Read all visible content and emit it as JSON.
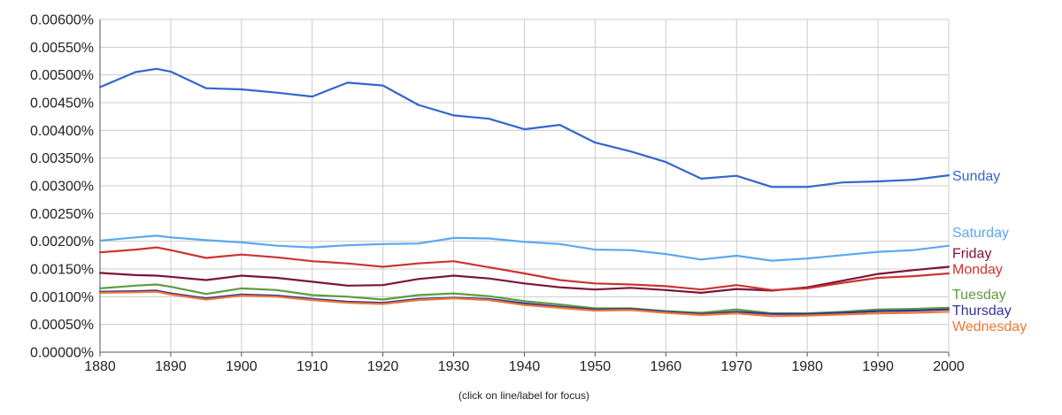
{
  "chart_data": {
    "type": "line",
    "x_min": 1880,
    "x_max": 2000,
    "ylim": [
      0,
      0.006
    ],
    "x_ticks": [
      "1880",
      "1890",
      "1900",
      "1910",
      "1920",
      "1930",
      "1940",
      "1950",
      "1960",
      "1970",
      "1980",
      "1990",
      "2000"
    ],
    "y_ticks": [
      "0.00000%",
      "0.00050%",
      "0.00100%",
      "0.00150%",
      "0.00200%",
      "0.00250%",
      "0.00300%",
      "0.00350%",
      "0.00400%",
      "0.00450%",
      "0.00500%",
      "0.00550%",
      "0.00600%"
    ],
    "x": [
      1880,
      1885,
      1888,
      1890,
      1895,
      1900,
      1905,
      1910,
      1915,
      1920,
      1925,
      1930,
      1935,
      1940,
      1945,
      1950,
      1955,
      1960,
      1965,
      1970,
      1975,
      1980,
      1985,
      1990,
      1995,
      2000
    ],
    "series": [
      {
        "name": "Sunday",
        "color": "#3366cc",
        "values": [
          0.00478,
          0.00505,
          0.00511,
          0.00506,
          0.00476,
          0.00474,
          0.00468,
          0.00461,
          0.00486,
          0.00481,
          0.00446,
          0.00427,
          0.00421,
          0.00402,
          0.0041,
          0.00378,
          0.00362,
          0.00343,
          0.00313,
          0.00318,
          0.00298,
          0.00298,
          0.00306,
          0.00308,
          0.00311,
          0.00319
        ]
      },
      {
        "name": "Saturday",
        "color": "#5aa8f0",
        "values": [
          0.00201,
          0.00207,
          0.0021,
          0.00207,
          0.00202,
          0.00198,
          0.00192,
          0.00189,
          0.00193,
          0.00195,
          0.00196,
          0.00206,
          0.00205,
          0.00199,
          0.00195,
          0.00185,
          0.00184,
          0.00177,
          0.00167,
          0.00174,
          0.00165,
          0.00169,
          0.00175,
          0.00181,
          0.00184,
          0.00192
        ]
      },
      {
        "name": "Friday",
        "color": "#7d1335",
        "values": [
          0.00143,
          0.00139,
          0.00138,
          0.00136,
          0.0013,
          0.00138,
          0.00134,
          0.00127,
          0.0012,
          0.00121,
          0.00132,
          0.00138,
          0.00133,
          0.00124,
          0.00117,
          0.00113,
          0.00116,
          0.00112,
          0.00107,
          0.00114,
          0.00111,
          0.00117,
          0.00129,
          0.00141,
          0.00148,
          0.00154
        ]
      },
      {
        "name": "Monday",
        "color": "#cc3333",
        "values": [
          0.0018,
          0.00185,
          0.00189,
          0.00184,
          0.0017,
          0.00176,
          0.00171,
          0.00164,
          0.0016,
          0.00154,
          0.0016,
          0.00164,
          0.00153,
          0.00142,
          0.0013,
          0.00124,
          0.00122,
          0.00119,
          0.00113,
          0.00121,
          0.00112,
          0.00115,
          0.00125,
          0.00134,
          0.00137,
          0.00142
        ]
      },
      {
        "name": "Tuesday",
        "color": "#5d9c3e",
        "values": [
          0.00115,
          0.0012,
          0.00122,
          0.00118,
          0.00105,
          0.00115,
          0.00112,
          0.00103,
          0.001,
          0.00095,
          0.00103,
          0.00106,
          0.00101,
          0.00092,
          0.00086,
          0.00079,
          0.00079,
          0.00074,
          0.00071,
          0.00077,
          0.0007,
          0.0007,
          0.00073,
          0.00077,
          0.00078,
          0.0008
        ]
      },
      {
        "name": "Thursday",
        "color": "#333399",
        "values": [
          0.00109,
          0.0011,
          0.00111,
          0.00106,
          0.00097,
          0.00104,
          0.00102,
          0.00096,
          0.00091,
          0.00089,
          0.00096,
          0.00098,
          0.00096,
          0.00088,
          0.00082,
          0.00077,
          0.00078,
          0.00073,
          0.00069,
          0.00073,
          0.00069,
          0.00069,
          0.00071,
          0.00074,
          0.00075,
          0.00077
        ]
      },
      {
        "name": "Wednesday",
        "color": "#ee7733",
        "values": [
          0.00107,
          0.00108,
          0.00109,
          0.00104,
          0.00095,
          0.00102,
          0.001,
          0.00094,
          0.00089,
          0.00087,
          0.00094,
          0.00097,
          0.00094,
          0.00085,
          0.0008,
          0.00075,
          0.00076,
          0.00071,
          0.00067,
          0.0007,
          0.00065,
          0.00066,
          0.00068,
          0.0007,
          0.00071,
          0.00073
        ]
      }
    ],
    "grid": true,
    "legend": "right-end inline labels"
  },
  "footnote": "(click on line/label for focus)"
}
